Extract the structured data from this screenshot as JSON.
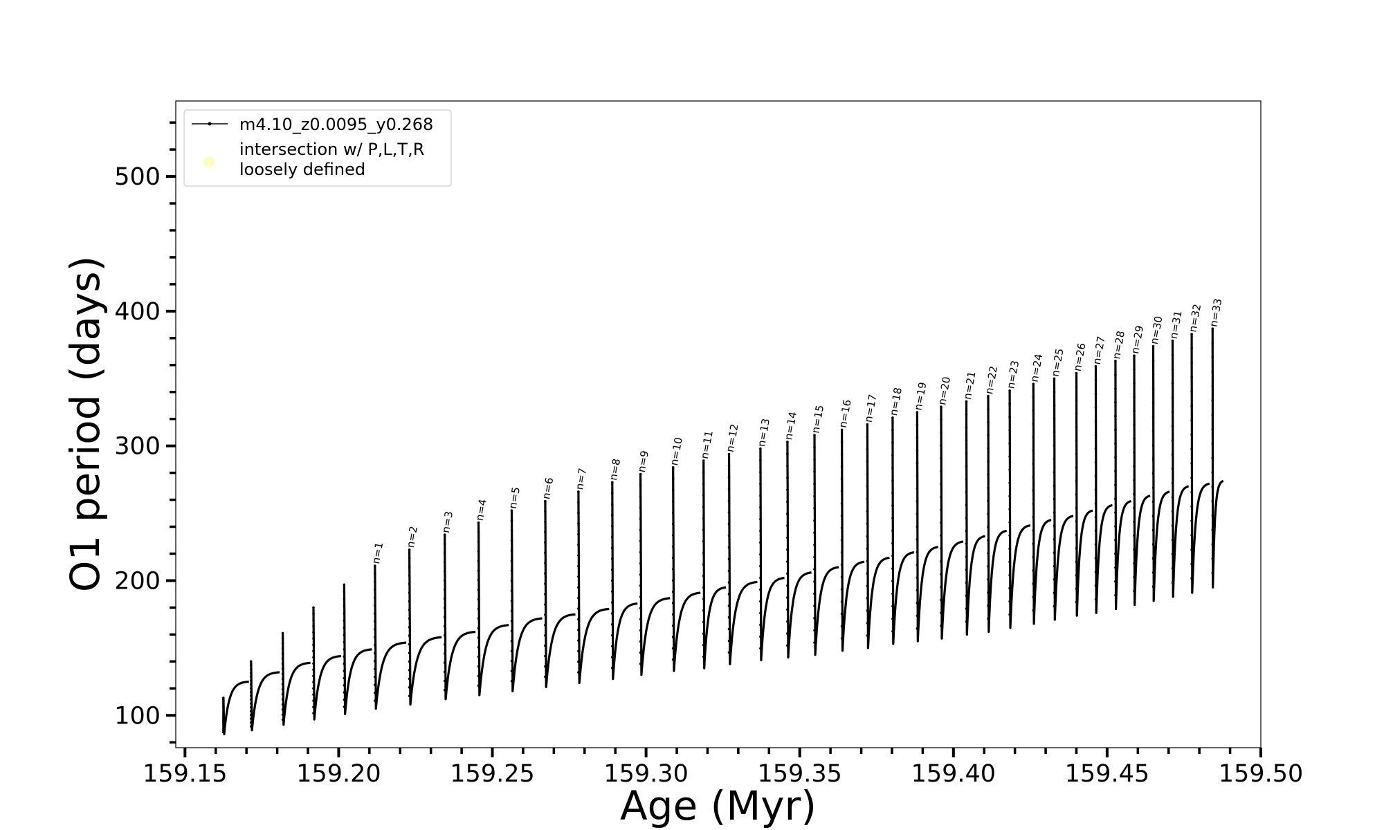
{
  "chart_data": {
    "type": "line",
    "xlabel": "Age (Myr)",
    "ylabel": "O1 period (days)",
    "xlim": [
      159.147,
      159.5
    ],
    "ylim": [
      76,
      556
    ],
    "xticks": [
      "159.15",
      "159.20",
      "159.25",
      "159.30",
      "159.35",
      "159.40",
      "159.45",
      "159.50"
    ],
    "yticks": [
      "100",
      "200",
      "300",
      "400",
      "500"
    ],
    "legend": {
      "placement": "upper-left",
      "entries": [
        {
          "label": "m4.10_z0.0095_y0.268",
          "marker": "line-dot",
          "color": "#000000"
        },
        {
          "label_lines": [
            "intersection w/ P,L,T,R",
            "loosely defined"
          ],
          "marker": "circle",
          "color": "#fffcc0"
        }
      ]
    },
    "series": [
      {
        "name": "m4.10_z0.0095_y0.268",
        "color": "#000000",
        "cycles": [
          {
            "label": "",
            "x_start": 159.1625,
            "x_end": 159.1708,
            "y_spike": 113,
            "y_min": 86,
            "y_end": 125
          },
          {
            "label": "",
            "x_start": 159.1715,
            "x_end": 159.1808,
            "y_spike": 140,
            "y_min": 89,
            "y_end": 132
          },
          {
            "label": "",
            "x_start": 159.1818,
            "x_end": 159.1908,
            "y_spike": 161,
            "y_min": 93,
            "y_end": 139
          },
          {
            "label": "",
            "x_start": 159.1918,
            "x_end": 159.2008,
            "y_spike": 180,
            "y_min": 97,
            "y_end": 144
          },
          {
            "label": "",
            "x_start": 159.2018,
            "x_end": 159.2108,
            "y_spike": 197,
            "y_min": 101,
            "y_end": 149
          },
          {
            "label": "n=1",
            "x_start": 159.2118,
            "x_end": 159.222,
            "y_spike": 211,
            "y_min": 105,
            "y_end": 154
          },
          {
            "label": "n=2",
            "x_start": 159.223,
            "x_end": 159.2335,
            "y_spike": 223,
            "y_min": 108,
            "y_end": 158
          },
          {
            "label": "n=3",
            "x_start": 159.2345,
            "x_end": 159.2445,
            "y_spike": 234,
            "y_min": 112,
            "y_end": 162
          },
          {
            "label": "n=4",
            "x_start": 159.2455,
            "x_end": 159.2553,
            "y_spike": 243,
            "y_min": 115,
            "y_end": 167
          },
          {
            "label": "n=5",
            "x_start": 159.2563,
            "x_end": 159.2662,
            "y_spike": 252,
            "y_min": 118,
            "y_end": 172
          },
          {
            "label": "n=6",
            "x_start": 159.2672,
            "x_end": 159.277,
            "y_spike": 259,
            "y_min": 121,
            "y_end": 175
          },
          {
            "label": "n=7",
            "x_start": 159.278,
            "x_end": 159.288,
            "y_spike": 266,
            "y_min": 124,
            "y_end": 179
          },
          {
            "label": "n=8",
            "x_start": 159.289,
            "x_end": 159.2972,
            "y_spike": 273,
            "y_min": 127,
            "y_end": 183
          },
          {
            "label": "n=9",
            "x_start": 159.2982,
            "x_end": 159.3078,
            "y_spike": 279,
            "y_min": 130,
            "y_end": 187
          },
          {
            "label": "n=10",
            "x_start": 159.3088,
            "x_end": 159.3177,
            "y_spike": 284,
            "y_min": 133,
            "y_end": 191
          },
          {
            "label": "n=11",
            "x_start": 159.3187,
            "x_end": 159.326,
            "y_spike": 289,
            "y_min": 135,
            "y_end": 195
          },
          {
            "label": "n=12",
            "x_start": 159.327,
            "x_end": 159.3362,
            "y_spike": 294,
            "y_min": 138,
            "y_end": 199
          },
          {
            "label": "n=13",
            "x_start": 159.3372,
            "x_end": 159.345,
            "y_spike": 298,
            "y_min": 141,
            "y_end": 202
          },
          {
            "label": "n=14",
            "x_start": 159.346,
            "x_end": 159.3538,
            "y_spike": 303,
            "y_min": 143,
            "y_end": 206
          },
          {
            "label": "n=15",
            "x_start": 159.3548,
            "x_end": 159.3627,
            "y_spike": 308,
            "y_min": 145,
            "y_end": 210
          },
          {
            "label": "n=16",
            "x_start": 159.3637,
            "x_end": 159.371,
            "y_spike": 312,
            "y_min": 148,
            "y_end": 214
          },
          {
            "label": "n=17",
            "x_start": 159.372,
            "x_end": 159.3792,
            "y_spike": 316,
            "y_min": 150,
            "y_end": 217
          },
          {
            "label": "n=18",
            "x_start": 159.3802,
            "x_end": 159.3872,
            "y_spike": 321,
            "y_min": 153,
            "y_end": 221
          },
          {
            "label": "n=19",
            "x_start": 159.3882,
            "x_end": 159.395,
            "y_spike": 325,
            "y_min": 155,
            "y_end": 225
          },
          {
            "label": "n=20",
            "x_start": 159.396,
            "x_end": 159.4032,
            "y_spike": 329,
            "y_min": 157,
            "y_end": 229
          },
          {
            "label": "n=21",
            "x_start": 159.4042,
            "x_end": 159.4103,
            "y_spike": 333,
            "y_min": 160,
            "y_end": 233
          },
          {
            "label": "n=22",
            "x_start": 159.4113,
            "x_end": 159.4173,
            "y_spike": 337,
            "y_min": 162,
            "y_end": 237
          },
          {
            "label": "n=23",
            "x_start": 159.4183,
            "x_end": 159.425,
            "y_spike": 341,
            "y_min": 165,
            "y_end": 241
          },
          {
            "label": "n=24",
            "x_start": 159.426,
            "x_end": 159.4318,
            "y_spike": 346,
            "y_min": 168,
            "y_end": 245
          },
          {
            "label": "n=25",
            "x_start": 159.4328,
            "x_end": 159.439,
            "y_spike": 350,
            "y_min": 171,
            "y_end": 248
          },
          {
            "label": "n=26",
            "x_start": 159.44,
            "x_end": 159.4453,
            "y_spike": 354,
            "y_min": 174,
            "y_end": 252
          },
          {
            "label": "n=27",
            "x_start": 159.4463,
            "x_end": 159.4517,
            "y_spike": 359,
            "y_min": 176,
            "y_end": 256
          },
          {
            "label": "n=28",
            "x_start": 159.4527,
            "x_end": 159.4578,
            "y_spike": 363,
            "y_min": 179,
            "y_end": 259
          },
          {
            "label": "n=29",
            "x_start": 159.4588,
            "x_end": 159.464,
            "y_spike": 367,
            "y_min": 182,
            "y_end": 263
          },
          {
            "label": "n=30",
            "x_start": 159.465,
            "x_end": 159.4703,
            "y_spike": 374,
            "y_min": 185,
            "y_end": 266
          },
          {
            "label": "n=31",
            "x_start": 159.4713,
            "x_end": 159.4765,
            "y_spike": 378,
            "y_min": 188,
            "y_end": 270
          },
          {
            "label": "n=32",
            "x_start": 159.4775,
            "x_end": 159.4833,
            "y_spike": 383,
            "y_min": 191,
            "y_end": 272
          },
          {
            "label": "n=33",
            "x_start": 159.4843,
            "x_end": 159.4878,
            "y_spike": 387,
            "y_min": 195,
            "y_end": 274
          }
        ]
      }
    ]
  }
}
